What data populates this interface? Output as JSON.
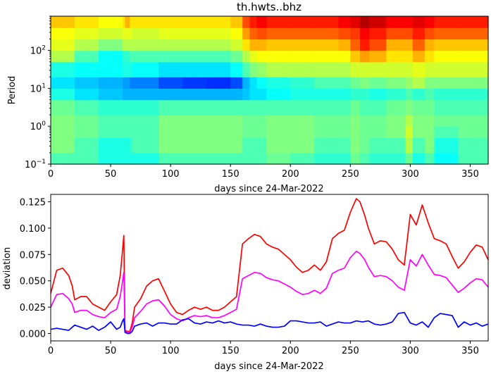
{
  "chart_data": [
    {
      "type": "heatmap",
      "title": "th.hwts..bhz",
      "xlabel": "days since 24-Mar-2022",
      "ylabel": "Period",
      "xlim": [
        0,
        365
      ],
      "ylim": [
        0.1,
        800
      ],
      "yscale": "log",
      "x_ticks": [
        0,
        50,
        100,
        150,
        200,
        250,
        300,
        350
      ],
      "y_ticks": [
        {
          "value": 0.1,
          "label": "10",
          "exp": "−1"
        },
        {
          "value": 1,
          "label": "10",
          "exp": "0"
        },
        {
          "value": 10,
          "label": "10",
          "exp": "1"
        },
        {
          "value": 100,
          "label": "10",
          "exp": "2"
        }
      ],
      "colormap": "jet",
      "period_bins": [
        0.1,
        0.2,
        0.5,
        1,
        2,
        5,
        10,
        20,
        50,
        100,
        200,
        400,
        800
      ],
      "day_bins": [
        0,
        16,
        20,
        40,
        60,
        62,
        64,
        66,
        68,
        90,
        110,
        130,
        150,
        160,
        166,
        172,
        180,
        200,
        220,
        240,
        250,
        258,
        266,
        280,
        296,
        302,
        312,
        320,
        340,
        365
      ],
      "values": [
        [
          0.45,
          0.45,
          0.45,
          0.4,
          0.4,
          0.4,
          0.4,
          0.4,
          0.4,
          0.45,
          0.45,
          0.45,
          0.45,
          0.45,
          0.45,
          0.45,
          0.48,
          0.45,
          0.42,
          0.42,
          0.48,
          0.45,
          0.42,
          0.42,
          0.48,
          0.4,
          0.45,
          0.38,
          0.45
        ],
        [
          0.5,
          0.5,
          0.45,
          0.4,
          0.4,
          0.4,
          0.4,
          0.42,
          0.45,
          0.5,
          0.5,
          0.5,
          0.5,
          0.45,
          0.45,
          0.45,
          0.5,
          0.5,
          0.45,
          0.45,
          0.5,
          0.48,
          0.45,
          0.45,
          0.55,
          0.45,
          0.5,
          0.4,
          0.45
        ],
        [
          0.5,
          0.5,
          0.48,
          0.45,
          0.45,
          0.45,
          0.45,
          0.45,
          0.45,
          0.5,
          0.5,
          0.5,
          0.5,
          0.48,
          0.48,
          0.48,
          0.5,
          0.5,
          0.48,
          0.48,
          0.5,
          0.48,
          0.48,
          0.5,
          0.58,
          0.5,
          0.5,
          0.45,
          0.48
        ],
        [
          0.5,
          0.5,
          0.48,
          0.45,
          0.45,
          0.45,
          0.45,
          0.45,
          0.45,
          0.5,
          0.5,
          0.5,
          0.5,
          0.48,
          0.48,
          0.48,
          0.5,
          0.5,
          0.48,
          0.48,
          0.5,
          0.48,
          0.48,
          0.5,
          0.55,
          0.5,
          0.5,
          0.48,
          0.48
        ],
        [
          0.48,
          0.48,
          0.45,
          0.42,
          0.42,
          0.42,
          0.42,
          0.42,
          0.42,
          0.45,
          0.45,
          0.45,
          0.45,
          0.45,
          0.45,
          0.45,
          0.45,
          0.45,
          0.45,
          0.45,
          0.48,
          0.45,
          0.45,
          0.48,
          0.5,
          0.48,
          0.48,
          0.45,
          0.45
        ],
        [
          0.4,
          0.4,
          0.35,
          0.32,
          0.3,
          0.3,
          0.3,
          0.3,
          0.3,
          0.3,
          0.3,
          0.3,
          0.3,
          0.32,
          0.35,
          0.35,
          0.38,
          0.4,
          0.4,
          0.4,
          0.42,
          0.42,
          0.4,
          0.42,
          0.45,
          0.42,
          0.45,
          0.42,
          0.42
        ],
        [
          0.35,
          0.35,
          0.32,
          0.3,
          0.28,
          0.28,
          0.28,
          0.25,
          0.25,
          0.2,
          0.18,
          0.17,
          0.2,
          0.3,
          0.35,
          0.38,
          0.4,
          0.42,
          0.45,
          0.45,
          0.48,
          0.5,
          0.48,
          0.5,
          0.52,
          0.55,
          0.5,
          0.5,
          0.5
        ],
        [
          0.4,
          0.4,
          0.38,
          0.38,
          0.4,
          0.4,
          0.4,
          0.4,
          0.38,
          0.35,
          0.35,
          0.35,
          0.38,
          0.45,
          0.5,
          0.52,
          0.55,
          0.55,
          0.55,
          0.55,
          0.58,
          0.58,
          0.58,
          0.58,
          0.58,
          0.6,
          0.58,
          0.58,
          0.58
        ],
        [
          0.55,
          0.55,
          0.45,
          0.38,
          0.42,
          0.42,
          0.42,
          0.45,
          0.45,
          0.45,
          0.45,
          0.45,
          0.48,
          0.55,
          0.6,
          0.62,
          0.62,
          0.62,
          0.62,
          0.62,
          0.68,
          0.72,
          0.7,
          0.65,
          0.65,
          0.7,
          0.65,
          0.62,
          0.62
        ],
        [
          0.6,
          0.6,
          0.55,
          0.5,
          0.55,
          0.55,
          0.55,
          0.55,
          0.55,
          0.55,
          0.55,
          0.55,
          0.58,
          0.65,
          0.7,
          0.7,
          0.68,
          0.68,
          0.68,
          0.7,
          0.78,
          0.85,
          0.8,
          0.7,
          0.7,
          0.78,
          0.7,
          0.68,
          0.68
        ],
        [
          0.62,
          0.62,
          0.6,
          0.58,
          0.6,
          0.6,
          0.6,
          0.6,
          0.58,
          0.6,
          0.6,
          0.6,
          0.62,
          0.72,
          0.78,
          0.8,
          0.78,
          0.78,
          0.78,
          0.8,
          0.82,
          0.88,
          0.85,
          0.8,
          0.8,
          0.85,
          0.8,
          0.78,
          0.78
        ],
        [
          0.68,
          0.68,
          0.65,
          0.62,
          0.65,
          0.7,
          0.7,
          0.65,
          0.65,
          0.65,
          0.65,
          0.65,
          0.68,
          0.8,
          0.85,
          0.88,
          0.85,
          0.85,
          0.85,
          0.88,
          0.9,
          0.95,
          0.92,
          0.88,
          0.88,
          0.9,
          0.88,
          0.85,
          0.85
        ]
      ]
    },
    {
      "type": "line",
      "xlabel": "days since 24-Mar-2022",
      "ylabel": "deviation",
      "xlim": [
        0,
        365
      ],
      "ylim": [
        -0.007,
        0.132
      ],
      "x_ticks": [
        0,
        50,
        100,
        150,
        200,
        250,
        300,
        350
      ],
      "y_ticks": [
        0.0,
        0.025,
        0.05,
        0.075,
        0.1,
        0.125
      ],
      "y_tick_labels": [
        "0.000",
        "0.025",
        "0.050",
        "0.075",
        "0.100",
        "0.125"
      ],
      "series": [
        {
          "color": "#ff0000",
          "x": [
            0,
            5,
            10,
            15,
            18,
            20,
            25,
            30,
            35,
            40,
            45,
            50,
            55,
            58,
            60,
            61,
            62,
            64,
            66,
            68,
            70,
            75,
            80,
            85,
            90,
            95,
            100,
            105,
            110,
            115,
            120,
            125,
            130,
            135,
            140,
            145,
            150,
            155,
            160,
            165,
            170,
            175,
            180,
            185,
            190,
            195,
            200,
            205,
            210,
            215,
            220,
            225,
            230,
            235,
            240,
            245,
            250,
            255,
            258,
            262,
            265,
            270,
            275,
            280,
            285,
            290,
            295,
            300,
            305,
            310,
            315,
            320,
            325,
            330,
            335,
            340,
            345,
            350,
            355,
            360,
            365
          ],
          "y": [
            0.038,
            0.06,
            0.062,
            0.055,
            0.045,
            0.032,
            0.035,
            0.035,
            0.028,
            0.025,
            0.022,
            0.03,
            0.037,
            0.055,
            0.08,
            0.093,
            0.003,
            0.002,
            0.002,
            0.01,
            0.025,
            0.033,
            0.045,
            0.05,
            0.052,
            0.04,
            0.028,
            0.02,
            0.018,
            0.022,
            0.025,
            0.023,
            0.025,
            0.022,
            0.022,
            0.025,
            0.03,
            0.035,
            0.085,
            0.09,
            0.094,
            0.092,
            0.085,
            0.082,
            0.08,
            0.075,
            0.07,
            0.063,
            0.058,
            0.06,
            0.065,
            0.06,
            0.068,
            0.09,
            0.095,
            0.098,
            0.115,
            0.128,
            0.125,
            0.112,
            0.1,
            0.085,
            0.088,
            0.087,
            0.08,
            0.07,
            0.065,
            0.113,
            0.103,
            0.122,
            0.105,
            0.09,
            0.088,
            0.085,
            0.073,
            0.062,
            0.068,
            0.077,
            0.084,
            0.082,
            0.07
          ]
        },
        {
          "color": "#ff00ff",
          "x": [
            0,
            5,
            10,
            15,
            18,
            20,
            25,
            30,
            35,
            40,
            45,
            50,
            55,
            58,
            60,
            61,
            62,
            64,
            66,
            68,
            70,
            75,
            80,
            85,
            90,
            95,
            100,
            105,
            110,
            115,
            120,
            125,
            130,
            135,
            140,
            145,
            150,
            155,
            160,
            165,
            170,
            175,
            180,
            185,
            190,
            195,
            200,
            205,
            210,
            215,
            220,
            225,
            230,
            235,
            240,
            245,
            250,
            255,
            258,
            262,
            265,
            270,
            275,
            280,
            285,
            290,
            295,
            300,
            305,
            310,
            315,
            320,
            325,
            330,
            335,
            340,
            345,
            350,
            355,
            360,
            365
          ],
          "y": [
            0.025,
            0.037,
            0.038,
            0.033,
            0.028,
            0.02,
            0.022,
            0.022,
            0.018,
            0.016,
            0.015,
            0.02,
            0.023,
            0.035,
            0.05,
            0.058,
            0.002,
            0.001,
            0.001,
            0.006,
            0.015,
            0.021,
            0.028,
            0.031,
            0.032,
            0.026,
            0.018,
            0.014,
            0.012,
            0.015,
            0.017,
            0.016,
            0.017,
            0.015,
            0.015,
            0.017,
            0.02,
            0.023,
            0.052,
            0.055,
            0.058,
            0.057,
            0.053,
            0.051,
            0.05,
            0.047,
            0.044,
            0.04,
            0.037,
            0.038,
            0.041,
            0.038,
            0.043,
            0.057,
            0.06,
            0.062,
            0.072,
            0.078,
            0.076,
            0.07,
            0.063,
            0.054,
            0.055,
            0.054,
            0.05,
            0.044,
            0.041,
            0.07,
            0.064,
            0.075,
            0.065,
            0.056,
            0.055,
            0.053,
            0.046,
            0.039,
            0.043,
            0.048,
            0.052,
            0.051,
            0.044
          ]
        },
        {
          "color": "#0000ff",
          "x": [
            0,
            5,
            10,
            15,
            20,
            25,
            30,
            35,
            40,
            45,
            50,
            55,
            58,
            60,
            61,
            62,
            64,
            66,
            68,
            70,
            75,
            80,
            85,
            90,
            95,
            100,
            105,
            110,
            115,
            120,
            125,
            130,
            135,
            140,
            145,
            150,
            155,
            160,
            165,
            170,
            175,
            180,
            185,
            190,
            195,
            200,
            205,
            210,
            215,
            220,
            225,
            230,
            235,
            240,
            245,
            250,
            255,
            260,
            265,
            270,
            275,
            280,
            285,
            290,
            295,
            300,
            305,
            310,
            315,
            320,
            325,
            330,
            335,
            340,
            345,
            350,
            355,
            360,
            365
          ],
          "y": [
            0.004,
            0.005,
            0.004,
            0.003,
            0.008,
            0.006,
            0.004,
            0.007,
            0.003,
            0.006,
            0.011,
            0.004,
            0.006,
            0.012,
            0.014,
            0.001,
            0.0,
            0.0,
            0.002,
            0.007,
            0.009,
            0.01,
            0.007,
            0.01,
            0.01,
            0.009,
            0.009,
            0.013,
            0.014,
            0.01,
            0.009,
            0.011,
            0.01,
            0.012,
            0.01,
            0.011,
            0.009,
            0.008,
            0.008,
            0.007,
            0.009,
            0.007,
            0.006,
            0.006,
            0.007,
            0.012,
            0.012,
            0.011,
            0.01,
            0.01,
            0.011,
            0.007,
            0.009,
            0.011,
            0.01,
            0.01,
            0.012,
            0.011,
            0.012,
            0.009,
            0.008,
            0.009,
            0.011,
            0.019,
            0.02,
            0.01,
            0.008,
            0.011,
            0.006,
            0.015,
            0.019,
            0.018,
            0.017,
            0.006,
            0.011,
            0.008,
            0.01,
            0.007,
            0.009
          ]
        }
      ]
    }
  ]
}
